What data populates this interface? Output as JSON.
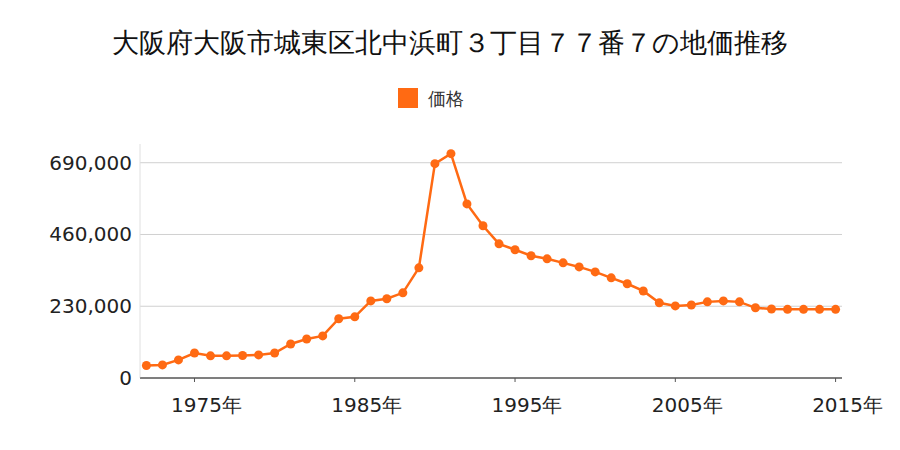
{
  "chart_data": {
    "type": "line",
    "title": "大阪府大阪市城東区北中浜町３丁目７７番７の地価推移",
    "x": [
      1972,
      1973,
      1974,
      1975,
      1976,
      1977,
      1978,
      1979,
      1980,
      1981,
      1982,
      1983,
      1984,
      1985,
      1986,
      1987,
      1988,
      1989,
      1990,
      1991,
      1992,
      1993,
      1994,
      1995,
      1996,
      1997,
      1998,
      1999,
      2000,
      2001,
      2002,
      2003,
      2004,
      2005,
      2006,
      2007,
      2008,
      2009,
      2010,
      2011,
      2012,
      2013,
      2014,
      2015
    ],
    "series": [
      {
        "name": "価格",
        "color": "#ff6a13",
        "marker": "circle",
        "line_style": "solid",
        "values": [
          40000,
          42000,
          58000,
          80000,
          71000,
          71000,
          72000,
          74000,
          80000,
          109000,
          125000,
          135000,
          190000,
          196000,
          247000,
          254000,
          273000,
          353000,
          687000,
          719000,
          558000,
          488000,
          430000,
          411000,
          392000,
          382000,
          369000,
          356000,
          340000,
          321000,
          302000,
          279000,
          241000,
          231000,
          234000,
          244000,
          247000,
          244000,
          225000,
          221000,
          220000,
          220000,
          220000,
          220000
        ]
      }
    ],
    "xlim": [
      1971.6,
      2015.4
    ],
    "xticks": [
      {
        "value": 1975,
        "label": "1975年"
      },
      {
        "value": 1985,
        "label": "1985年"
      },
      {
        "value": 1995,
        "label": "1995年"
      },
      {
        "value": 2005,
        "label": "2005年"
      },
      {
        "value": 2015,
        "label": "2015年"
      }
    ],
    "ylim": [
      0,
      750000
    ],
    "yticks": [
      0,
      {
        "value": 230000,
        "label": "230,000"
      },
      {
        "value": 460000,
        "label": "460,000"
      },
      {
        "value": 690000,
        "label": "690,000"
      }
    ],
    "grid": true,
    "legend": "top"
  }
}
